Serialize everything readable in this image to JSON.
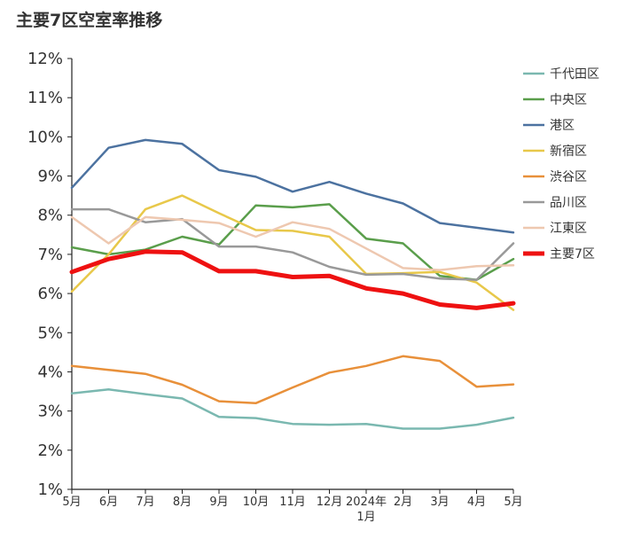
{
  "chart_data": {
    "type": "line",
    "title": "主要7区空室率推移",
    "xlabel": "",
    "ylabel": "",
    "ylim": [
      1,
      12
    ],
    "y_ticks": [
      "1%",
      "2%",
      "3%",
      "4%",
      "5%",
      "6%",
      "7%",
      "8%",
      "9%",
      "10%",
      "11%",
      "12%"
    ],
    "categories": [
      "5月",
      "6月",
      "7月",
      "8月",
      "9月",
      "10月",
      "11月",
      "12月",
      "2024年1月",
      "2月",
      "3月",
      "4月",
      "5月"
    ],
    "legend_position": "right",
    "grid": false,
    "series": [
      {
        "name": "千代田区",
        "color": "#7ab8b0",
        "width": 2.5,
        "values": [
          3.45,
          3.55,
          3.43,
          3.32,
          2.85,
          2.82,
          2.67,
          2.65,
          2.67,
          2.55,
          2.55,
          2.65,
          2.83
        ]
      },
      {
        "name": "中央区",
        "color": "#5a9e4b",
        "width": 2.5,
        "values": [
          7.18,
          7.0,
          7.12,
          7.45,
          7.25,
          8.25,
          8.2,
          8.28,
          7.4,
          7.28,
          6.45,
          6.35,
          6.88
        ]
      },
      {
        "name": "港区",
        "color": "#4c72a0",
        "width": 2.5,
        "values": [
          8.7,
          9.72,
          9.92,
          9.82,
          9.15,
          8.98,
          8.6,
          8.85,
          8.55,
          8.3,
          7.8,
          7.68,
          7.56
        ]
      },
      {
        "name": "新宿区",
        "color": "#e8c84a",
        "width": 2.5,
        "values": [
          6.05,
          7.0,
          8.15,
          8.5,
          8.05,
          7.62,
          7.6,
          7.45,
          6.5,
          6.52,
          6.55,
          6.28,
          5.58
        ]
      },
      {
        "name": "渋谷区",
        "color": "#e8903a",
        "width": 2.5,
        "values": [
          4.15,
          4.05,
          3.95,
          3.67,
          3.25,
          3.2,
          3.6,
          3.98,
          4.15,
          4.4,
          4.28,
          3.62,
          3.68
        ]
      },
      {
        "name": "品川区",
        "color": "#999999",
        "width": 2.5,
        "values": [
          8.15,
          8.15,
          7.82,
          7.9,
          7.2,
          7.2,
          7.05,
          6.68,
          6.48,
          6.5,
          6.38,
          6.35,
          7.28
        ]
      },
      {
        "name": "江東区",
        "color": "#eec8b0",
        "width": 2.5,
        "values": [
          7.95,
          7.28,
          7.95,
          7.88,
          7.8,
          7.45,
          7.82,
          7.65,
          7.15,
          6.65,
          6.6,
          6.7,
          6.72
        ]
      },
      {
        "name": "主要7区",
        "color": "#ee1111",
        "width": 5,
        "values": [
          6.55,
          6.88,
          7.07,
          7.05,
          6.57,
          6.57,
          6.42,
          6.45,
          6.13,
          6.0,
          5.72,
          5.63,
          5.75
        ]
      }
    ]
  }
}
